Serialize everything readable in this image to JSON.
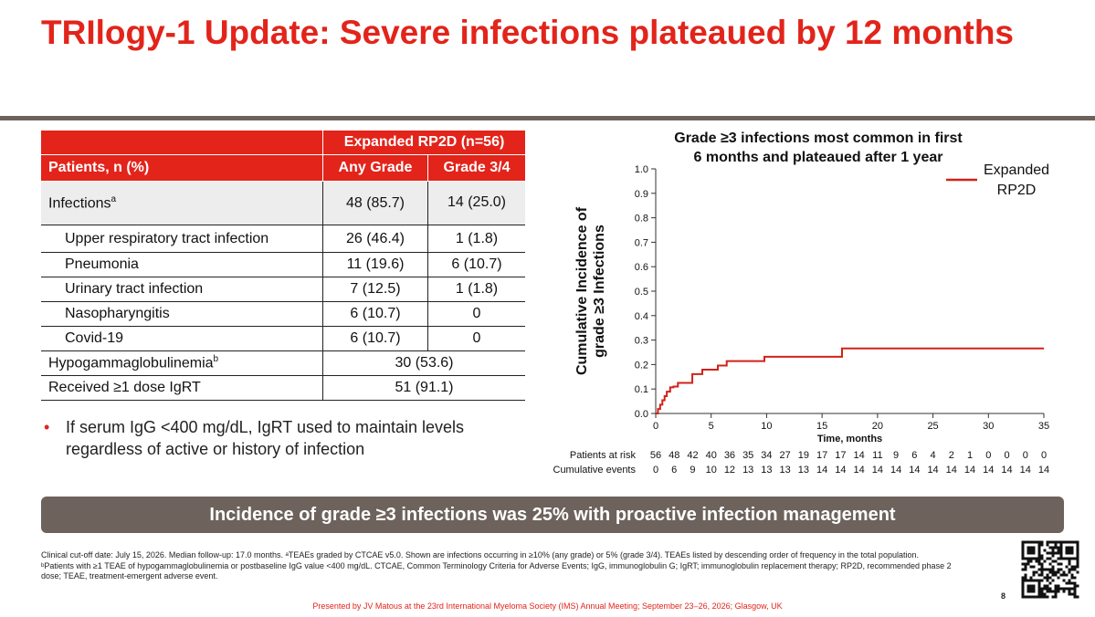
{
  "slide": {
    "title": "TRIlogy-1 Update: Severe infections plateaued by 12 months",
    "bullet": "If serum IgG <400 mg/dL, IgRT used to maintain levels regardless of active or history of infection",
    "banner": "Incidence of grade ≥3 infections was 25% with proactive infection management",
    "footnote_1": "Clinical cut-off date: July 15, 2026. Median follow-up: 17.0 months. ᵃTEAEs graded by CTCAE v5.0. Shown are infections occurring in ≥10% (any grade) or 5% (grade 3/4). TEAEs listed by descending order of frequency in the total population.",
    "footnote_2": "ᵇPatients with ≥1 TEAE of hypogammaglobulinemia or postbaseline IgG value <400 mg/dL. CTCAE, Common Terminology Criteria for Adverse Events; IgG, immunoglobulin G; IgRT; immunoglobulin replacement therapy; RP2D, recommended phase 2 dose; TEAE, treatment-emergent adverse event.",
    "presented_by": "Presented by JV Matous at the 23rd International Myeloma Society (IMS) Annual Meeting; September 23–26, 2026; Glasgow, UK",
    "page_number": "8"
  },
  "table": {
    "group_header": "Expanded RP2D (n=56)",
    "row_header": "Patients, n (%)",
    "col_any": "Any Grade",
    "col_g34": "Grade 3/4",
    "rows": [
      {
        "label": "Infections",
        "sup": "a",
        "any": "48 (85.7)",
        "g34": "14 (25.0)"
      },
      {
        "label": "Upper respiratory tract infection",
        "any": "26 (46.4)",
        "g34": "1 (1.8)"
      },
      {
        "label": "Pneumonia",
        "any": "11 (19.6)",
        "g34": "6 (10.7)"
      },
      {
        "label": "Urinary tract infection",
        "any": "7 (12.5)",
        "g34": "1 (1.8)"
      },
      {
        "label": "Nasopharyngitis",
        "any": "6 (10.7)",
        "g34": "0"
      },
      {
        "label": "Covid-19",
        "any": "6 (10.7)",
        "g34": "0"
      },
      {
        "label": "Hypogammaglobulinemia",
        "sup": "b",
        "value": "30 (53.6)"
      },
      {
        "label": "Received ≥1 dose IgRT",
        "value": "51 (91.1)"
      }
    ]
  },
  "chart_data": {
    "type": "line",
    "title": "Grade ≥3 infections most common in first 6 months and plateaued after 1 year",
    "title_line1": "Grade ≥3 infections most common in first",
    "title_line2": "6 months and plateaued after 1 year",
    "xlabel": "Time, months",
    "ylabel_line1": "Cumulative Incidence of",
    "ylabel_line2": "grade ≥3 Infections",
    "xlim": [
      0,
      35
    ],
    "ylim": [
      0,
      1.0
    ],
    "x_ticks": [
      "0",
      "5",
      "10",
      "15",
      "20",
      "25",
      "30",
      "35"
    ],
    "y_ticks": [
      "0.0",
      "0.1",
      "0.2",
      "0.3",
      "0.4",
      "0.5",
      "0.6",
      "0.7",
      "0.8",
      "0.9",
      "1.0"
    ],
    "legend_label_line1": "Expanded",
    "legend_label_line2": "RP2D",
    "legend_position": "top-right",
    "color": "#d0221a",
    "series": [
      {
        "name": "Expanded RP2D",
        "x": [
          0,
          0.2,
          0.4,
          0.6,
          0.8,
          1.0,
          1.3,
          1.6,
          2.0,
          3.3,
          4.2,
          5.6,
          6.4,
          9.8,
          16.8,
          35
        ],
        "y": [
          0,
          0.018,
          0.036,
          0.054,
          0.071,
          0.089,
          0.107,
          0.11,
          0.125,
          0.161,
          0.179,
          0.196,
          0.214,
          0.232,
          0.266,
          0.266
        ]
      }
    ],
    "risk_table": {
      "patients_label": "Patients at risk",
      "events_label": "Cumulative events",
      "patients": [
        "56",
        "48",
        "42",
        "40",
        "36",
        "35",
        "34",
        "27",
        "19",
        "17",
        "17",
        "14",
        "11",
        "9",
        "6",
        "4",
        "2",
        "1",
        "0",
        "0",
        "0",
        "0"
      ],
      "events": [
        "0",
        "6",
        "9",
        "10",
        "12",
        "13",
        "13",
        "13",
        "13",
        "14",
        "14",
        "14",
        "14",
        "14",
        "14",
        "14",
        "14",
        "14",
        "14",
        "14",
        "14",
        "14"
      ]
    }
  }
}
